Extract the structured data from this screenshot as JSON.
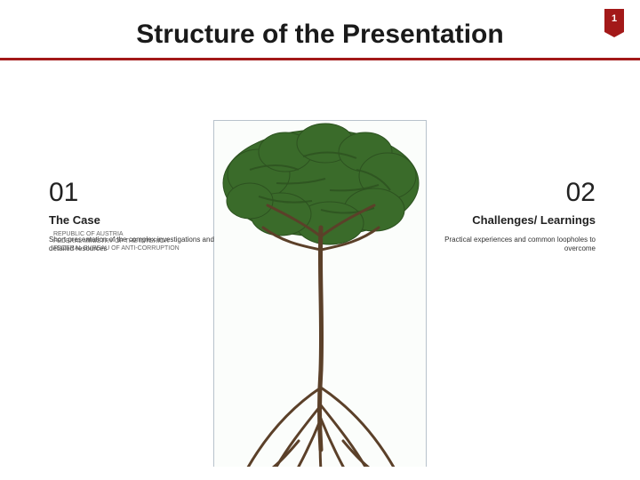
{
  "colors": {
    "accent": "#a31919",
    "brain_fill": "#3a6b2a",
    "brain_dark": "#2d5220",
    "trunk": "#5b4029",
    "border": "#b8c2cc"
  },
  "page_number": "1",
  "title": "Structure of the Presentation",
  "left": {
    "num": "01",
    "subtitle": "The Case",
    "desc": "Short presentation of the complex investigations and detailed resources"
  },
  "right": {
    "num": "02",
    "subtitle": "Challenges/ Learnings",
    "desc": "Practical experiences and common loopholes to overcome"
  },
  "footer": "REPUBLIC OF AUSTRIA\nFEDERAL MINISTRY OF THE INTERIOR\nFEDERAL BUREAU OF ANTI-CORRUPTION"
}
